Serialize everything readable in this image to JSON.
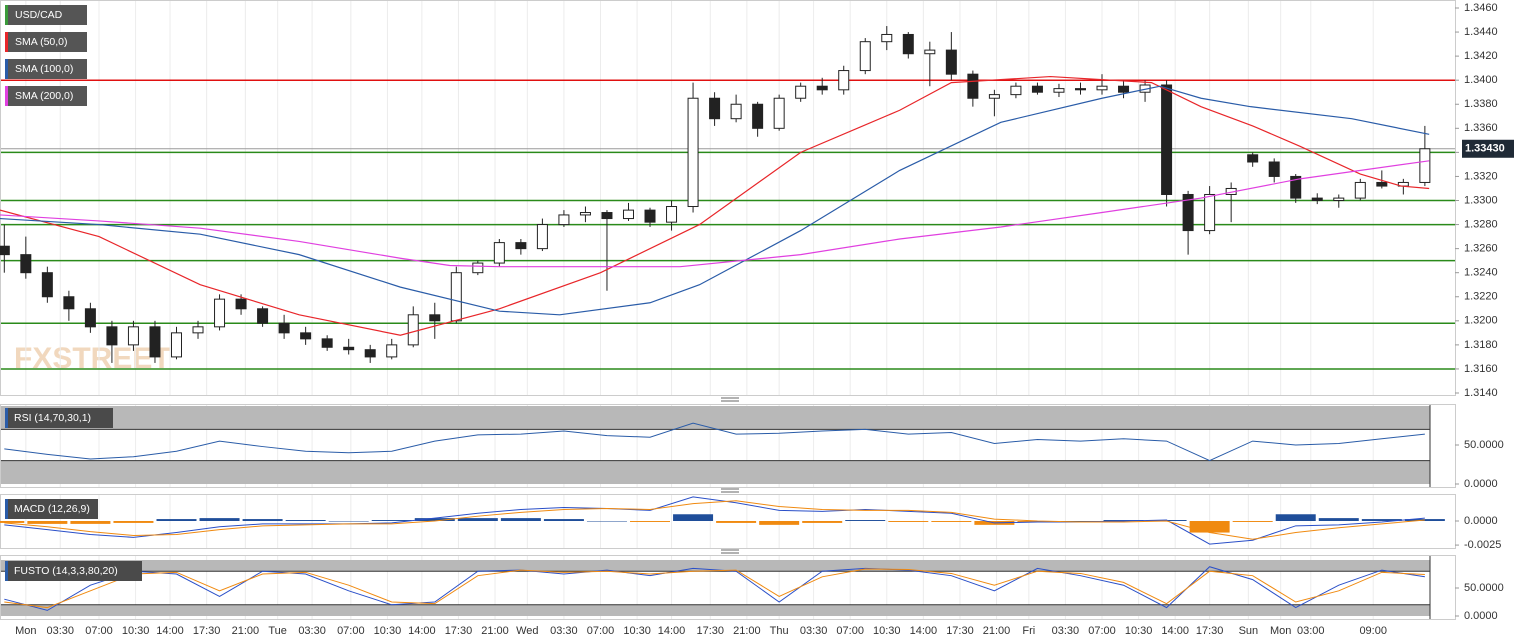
{
  "watermark": "FXSTREET",
  "chart_data": [
    {
      "type": "candlestick",
      "title": "USD/CAD",
      "color": "#3a9a3a",
      "xlim": [
        -0.2,
        67.4
      ],
      "ylim": [
        1.314,
        1.346
      ],
      "xgrid": true,
      "up_color": "#ffffff",
      "down_color": "#222222",
      "yticks": [
        {
          "value": 1.314,
          "label": "1.3140"
        },
        {
          "value": 1.316,
          "label": "1.3160"
        },
        {
          "value": 1.318,
          "label": "1.3180"
        },
        {
          "value": 1.32,
          "label": "1.3200"
        },
        {
          "value": 1.322,
          "label": "1.3220"
        },
        {
          "value": 1.324,
          "label": "1.3240"
        },
        {
          "value": 1.326,
          "label": "1.3260"
        },
        {
          "value": 1.328,
          "label": "1.3280"
        },
        {
          "value": 1.33,
          "label": "1.3300"
        },
        {
          "value": 1.332,
          "label": "1.3320"
        },
        {
          "value": 1.334,
          "label": "1.3340"
        },
        {
          "value": 1.336,
          "label": "1.3360"
        },
        {
          "value": 1.338,
          "label": "1.3380"
        },
        {
          "value": 1.34,
          "label": "1.3400"
        },
        {
          "value": 1.342,
          "label": "1.3420"
        },
        {
          "value": 1.344,
          "label": "1.3440"
        },
        {
          "value": 1.346,
          "label": "1.3460"
        }
      ],
      "xticks": [
        {
          "value": 1,
          "label": "Mon"
        },
        {
          "value": 2.6,
          "label": "03:30"
        },
        {
          "value": 4.4,
          "label": "07:00"
        },
        {
          "value": 6.1,
          "label": "10:30"
        },
        {
          "value": 7.7,
          "label": "14:00"
        },
        {
          "value": 9.4,
          "label": "17:30"
        },
        {
          "value": 11.2,
          "label": "21:00"
        },
        {
          "value": 12.7,
          "label": "Tue"
        },
        {
          "value": 14.3,
          "label": "03:30"
        },
        {
          "value": 16.1,
          "label": "07:00"
        },
        {
          "value": 17.8,
          "label": "10:30"
        },
        {
          "value": 19.4,
          "label": "14:00"
        },
        {
          "value": 21.1,
          "label": "17:30"
        },
        {
          "value": 22.8,
          "label": "21:00"
        },
        {
          "value": 24.3,
          "label": "Wed"
        },
        {
          "value": 26,
          "label": "03:30"
        },
        {
          "value": 27.7,
          "label": "07:00"
        },
        {
          "value": 29.4,
          "label": "10:30"
        },
        {
          "value": 31,
          "label": "14:00"
        },
        {
          "value": 32.8,
          "label": "17:30"
        },
        {
          "value": 34.5,
          "label": "21:00"
        },
        {
          "value": 36,
          "label": "Thu"
        },
        {
          "value": 37.6,
          "label": "03:30"
        },
        {
          "value": 39.3,
          "label": "07:00"
        },
        {
          "value": 41,
          "label": "10:30"
        },
        {
          "value": 42.7,
          "label": "14:00"
        },
        {
          "value": 44.4,
          "label": "17:30"
        },
        {
          "value": 46.1,
          "label": "21:00"
        },
        {
          "value": 47.6,
          "label": "Fri"
        },
        {
          "value": 49.3,
          "label": "03:30"
        },
        {
          "value": 51,
          "label": "07:00"
        },
        {
          "value": 52.7,
          "label": "10:30"
        },
        {
          "value": 54.4,
          "label": "14:00"
        },
        {
          "value": 56,
          "label": "17:30"
        },
        {
          "value": 57.8,
          "label": "Sun"
        },
        {
          "value": 59.3,
          "label": "Mon"
        },
        {
          "value": 60.7,
          "label": "03:00"
        },
        {
          "value": 63.6,
          "label": "09:00"
        }
      ],
      "open": [
        1.3262,
        1.3255,
        1.324,
        1.322,
        1.321,
        1.3195,
        1.318,
        1.3195,
        1.317,
        1.319,
        1.3195,
        1.3218,
        1.321,
        1.3198,
        1.319,
        1.3185,
        1.3178,
        1.3176,
        1.317,
        1.318,
        1.3205,
        1.32,
        1.324,
        1.3248,
        1.3265,
        1.326,
        1.328,
        1.3288,
        1.329,
        1.3285,
        1.3292,
        1.3282,
        1.3295,
        1.3385,
        1.3368,
        1.338,
        1.336,
        1.3385,
        1.3395,
        1.3392,
        1.3408,
        1.3432,
        1.3438,
        1.3422,
        1.3425,
        1.3405,
        1.3385,
        1.3388,
        1.3395,
        1.339,
        1.3393,
        1.3392,
        1.3395,
        1.339,
        1.3396,
        1.3305,
        1.3275,
        1.3305,
        1.3338,
        1.3332,
        1.332,
        1.3302,
        1.33,
        1.3302,
        1.3315,
        1.3312,
        1.3315
      ],
      "high": [
        1.328,
        1.327,
        1.3245,
        1.3225,
        1.3215,
        1.32,
        1.32,
        1.32,
        1.3195,
        1.32,
        1.3222,
        1.3222,
        1.3212,
        1.3205,
        1.3195,
        1.3188,
        1.3185,
        1.318,
        1.3185,
        1.3212,
        1.3215,
        1.3245,
        1.325,
        1.3268,
        1.3268,
        1.3285,
        1.3292,
        1.3295,
        1.3292,
        1.3298,
        1.3294,
        1.33,
        1.3398,
        1.339,
        1.3388,
        1.3382,
        1.3388,
        1.3398,
        1.3402,
        1.3412,
        1.3435,
        1.3445,
        1.344,
        1.3432,
        1.344,
        1.3408,
        1.3392,
        1.3398,
        1.3398,
        1.3397,
        1.3398,
        1.3405,
        1.34,
        1.34,
        1.34,
        1.3308,
        1.3312,
        1.3315,
        1.334,
        1.3335,
        1.3322,
        1.3306,
        1.3305,
        1.3318,
        1.3325,
        1.3318,
        1.3362
      ],
      "low": [
        1.324,
        1.3235,
        1.3215,
        1.32,
        1.319,
        1.3165,
        1.3175,
        1.3165,
        1.3168,
        1.3185,
        1.3192,
        1.3205,
        1.3195,
        1.3185,
        1.318,
        1.3175,
        1.3172,
        1.3165,
        1.3168,
        1.3178,
        1.3185,
        1.3198,
        1.3238,
        1.3245,
        1.3255,
        1.3258,
        1.3278,
        1.3282,
        1.3225,
        1.3283,
        1.3278,
        1.3275,
        1.329,
        1.3362,
        1.3365,
        1.3353,
        1.3358,
        1.3382,
        1.3388,
        1.3388,
        1.3405,
        1.3425,
        1.3418,
        1.3395,
        1.34,
        1.3378,
        1.337,
        1.3385,
        1.3388,
        1.3386,
        1.3388,
        1.3388,
        1.3385,
        1.3382,
        1.3295,
        1.3255,
        1.3272,
        1.3282,
        1.3328,
        1.3315,
        1.3298,
        1.3297,
        1.3294,
        1.33,
        1.331,
        1.3305,
        1.3312
      ],
      "close": [
        1.3255,
        1.324,
        1.322,
        1.321,
        1.3195,
        1.318,
        1.3195,
        1.317,
        1.319,
        1.3195,
        1.3218,
        1.321,
        1.3198,
        1.319,
        1.3185,
        1.3178,
        1.3176,
        1.317,
        1.318,
        1.3205,
        1.32,
        1.324,
        1.3248,
        1.3265,
        1.326,
        1.328,
        1.3288,
        1.329,
        1.3285,
        1.3292,
        1.3282,
        1.3295,
        1.3385,
        1.3368,
        1.338,
        1.336,
        1.3385,
        1.3395,
        1.3392,
        1.3408,
        1.3432,
        1.3438,
        1.3422,
        1.3425,
        1.3405,
        1.3385,
        1.3388,
        1.3395,
        1.339,
        1.3393,
        1.3392,
        1.3395,
        1.339,
        1.3396,
        1.3305,
        1.3275,
        1.3305,
        1.331,
        1.3332,
        1.332,
        1.3302,
        1.33,
        1.3302,
        1.3315,
        1.3312,
        1.3315,
        1.3343
      ],
      "series": [
        {
          "name": "SMA (50,0)",
          "color": "#e8262a",
          "x": [
            -0.2,
            4.4,
            9.1,
            13.7,
            18.4,
            23,
            27.7,
            32.3,
            37,
            41.6,
            44,
            48.6,
            53.3,
            55.6,
            58,
            60.2,
            63,
            64.9,
            66.2
          ],
          "values": [
            1.3292,
            1.327,
            1.323,
            1.3205,
            1.3188,
            1.321,
            1.324,
            1.328,
            1.334,
            1.3375,
            1.3398,
            1.3403,
            1.3398,
            1.3378,
            1.3362,
            1.3345,
            1.3322,
            1.3312,
            1.331
          ]
        },
        {
          "name": "SMA (100,0)",
          "color": "#2a5ca8",
          "x": [
            -0.2,
            4.4,
            9.1,
            13.7,
            18.4,
            23,
            25.8,
            30,
            32.3,
            37,
            41.6,
            46.3,
            51,
            53.7,
            55.6,
            57.9,
            62.6,
            66.2
          ],
          "values": [
            1.3285,
            1.328,
            1.3272,
            1.3255,
            1.3228,
            1.3208,
            1.3205,
            1.3215,
            1.323,
            1.3275,
            1.3325,
            1.3365,
            1.3385,
            1.3395,
            1.3385,
            1.3378,
            1.3368,
            1.3355
          ]
        },
        {
          "name": "SMA (200,0)",
          "color": "#e040e0",
          "x": [
            -0.2,
            4.4,
            9.1,
            13.7,
            18.4,
            20.7,
            23,
            31.4,
            37,
            41.6,
            46.3,
            51,
            55.6,
            60.2,
            66.2
          ],
          "values": [
            1.3288,
            1.3283,
            1.3277,
            1.3266,
            1.3252,
            1.3246,
            1.3245,
            1.3245,
            1.3255,
            1.3268,
            1.3278,
            1.329,
            1.3302,
            1.3318,
            1.3333
          ]
        }
      ],
      "levels": [
        {
          "value": 1.34,
          "color": "#e01010"
        },
        {
          "value": 1.334,
          "color": "#2a8a1a"
        },
        {
          "value": 1.33,
          "color": "#2a8a1a"
        },
        {
          "value": 1.328,
          "color": "#2a8a1a"
        },
        {
          "value": 1.325,
          "color": "#2a8a1a"
        },
        {
          "value": 1.3198,
          "color": "#2a8a1a"
        },
        {
          "value": 1.316,
          "color": "#2a8a1a"
        }
      ],
      "last_price": {
        "value": 1.3343,
        "label": "1.33430"
      }
    },
    {
      "type": "line",
      "title": "RSI (14,70,30,1)",
      "ylim": [
        0,
        100
      ],
      "upper": 70,
      "lower": 30,
      "yticks": [
        {
          "value": 0,
          "label": "0.0000"
        },
        {
          "value": 50,
          "label": "50.0000"
        }
      ],
      "series": [
        {
          "color": "#2a5ca8",
          "x": [
            0,
            2,
            4,
            6,
            8,
            10,
            12,
            14,
            16,
            18,
            20,
            22,
            24,
            26,
            28,
            30,
            32,
            34,
            36,
            38,
            40,
            42,
            44,
            46,
            48,
            50,
            52,
            54,
            56,
            58,
            60,
            62,
            64,
            66
          ],
          "values": [
            45,
            38,
            32,
            35,
            42,
            55,
            48,
            42,
            40,
            42,
            55,
            63,
            64,
            68,
            62,
            60,
            78,
            64,
            65,
            68,
            70,
            64,
            66,
            52,
            57,
            55,
            58,
            55,
            30,
            55,
            50,
            52,
            58,
            64
          ]
        }
      ]
    },
    {
      "type": "macd",
      "title": "MACD (12,26,9)",
      "ylim": [
        -0.0027,
        0.0027
      ],
      "yticks": [
        {
          "value": 0,
          "label": "0.0000"
        },
        {
          "value": -0.0025,
          "label": "-0.0025"
        }
      ],
      "x": [
        0,
        2,
        4,
        6,
        8,
        10,
        12,
        14,
        16,
        18,
        20,
        22,
        24,
        26,
        28,
        30,
        32,
        34,
        36,
        38,
        40,
        42,
        44,
        46,
        48,
        50,
        52,
        54,
        56,
        58,
        60,
        62,
        64,
        66
      ],
      "histogram": [
        -0.0002,
        -0.0003,
        -0.0003,
        -0.0002,
        0.0002,
        0.0003,
        0.0002,
        0.0001,
        0,
        0.0001,
        0.0003,
        0.0003,
        0.0003,
        0.0002,
        0,
        -0.0001,
        0.0007,
        -0.0002,
        -0.0004,
        -0.0002,
        0.0001,
        -0.0001,
        -0.0001,
        -0.0004,
        -0.0001,
        0,
        0.0001,
        0.0001,
        -0.0012,
        -0.0001,
        0.0007,
        0.0003,
        0.0002,
        0.0002
      ],
      "positive_color": "#1f4e9a",
      "negative_color": "#f08a10",
      "series": [
        {
          "color": "#2a4fc8",
          "values": [
            -0.0004,
            -0.0009,
            -0.0014,
            -0.0017,
            -0.0012,
            -0.0006,
            -0.0003,
            -0.0003,
            -0.0003,
            -0.0002,
            0.0003,
            0.0008,
            0.0012,
            0.0014,
            0.0013,
            0.0011,
            0.0025,
            0.0019,
            0.0011,
            0.001,
            0.0012,
            0.001,
            0.0008,
            -0.0002,
            -0.0001,
            -0.0001,
            0,
            0.0001,
            -0.0024,
            -0.002,
            -0.0005,
            -0.0004,
            -0.0001,
            0.0003
          ]
        },
        {
          "color": "#f08a10",
          "values": [
            -0.0002,
            -0.0006,
            -0.0011,
            -0.0015,
            -0.0014,
            -0.0009,
            -0.0005,
            -0.0004,
            -0.0003,
            -0.0003,
            0,
            0.0005,
            0.0009,
            0.0012,
            0.0013,
            0.0012,
            0.0018,
            0.0021,
            0.0015,
            0.0012,
            0.0011,
            0.0011,
            0.0009,
            0.0002,
            0,
            -0.0001,
            -0.0001,
            0,
            -0.0012,
            -0.0019,
            -0.0012,
            -0.0007,
            -0.0003,
            0.0001
          ]
        }
      ]
    },
    {
      "type": "line",
      "title": "FUSTO (14,3,3,80,20)",
      "ylim": [
        0,
        100
      ],
      "upper": 80,
      "lower": 20,
      "yticks": [
        {
          "value": 0,
          "label": "0.0000"
        },
        {
          "value": 50,
          "label": "50.0000"
        }
      ],
      "series": [
        {
          "color": "#2a4fc8",
          "x": [
            0,
            2,
            4,
            6,
            8,
            10,
            12,
            14,
            16,
            18,
            20,
            22,
            24,
            26,
            28,
            30,
            32,
            34,
            36,
            38,
            40,
            42,
            44,
            46,
            48,
            50,
            52,
            54,
            56,
            58,
            60,
            62,
            64,
            66
          ],
          "values": [
            30,
            10,
            55,
            80,
            75,
            35,
            80,
            75,
            45,
            20,
            25,
            80,
            82,
            75,
            82,
            72,
            85,
            80,
            25,
            80,
            85,
            82,
            72,
            45,
            85,
            72,
            55,
            15,
            88,
            65,
            15,
            55,
            82,
            70
          ]
        },
        {
          "color": "#f08a10",
          "x": [
            0,
            2,
            4,
            6,
            8,
            10,
            12,
            14,
            16,
            18,
            20,
            22,
            24,
            26,
            28,
            30,
            32,
            34,
            36,
            38,
            40,
            42,
            44,
            46,
            48,
            50,
            52,
            54,
            56,
            58,
            60,
            62,
            64,
            66
          ],
          "values": [
            25,
            15,
            45,
            75,
            78,
            45,
            75,
            78,
            55,
            25,
            22,
            72,
            82,
            78,
            80,
            75,
            80,
            82,
            35,
            70,
            84,
            83,
            76,
            55,
            80,
            76,
            60,
            22,
            80,
            72,
            25,
            45,
            78,
            74
          ]
        }
      ]
    }
  ]
}
